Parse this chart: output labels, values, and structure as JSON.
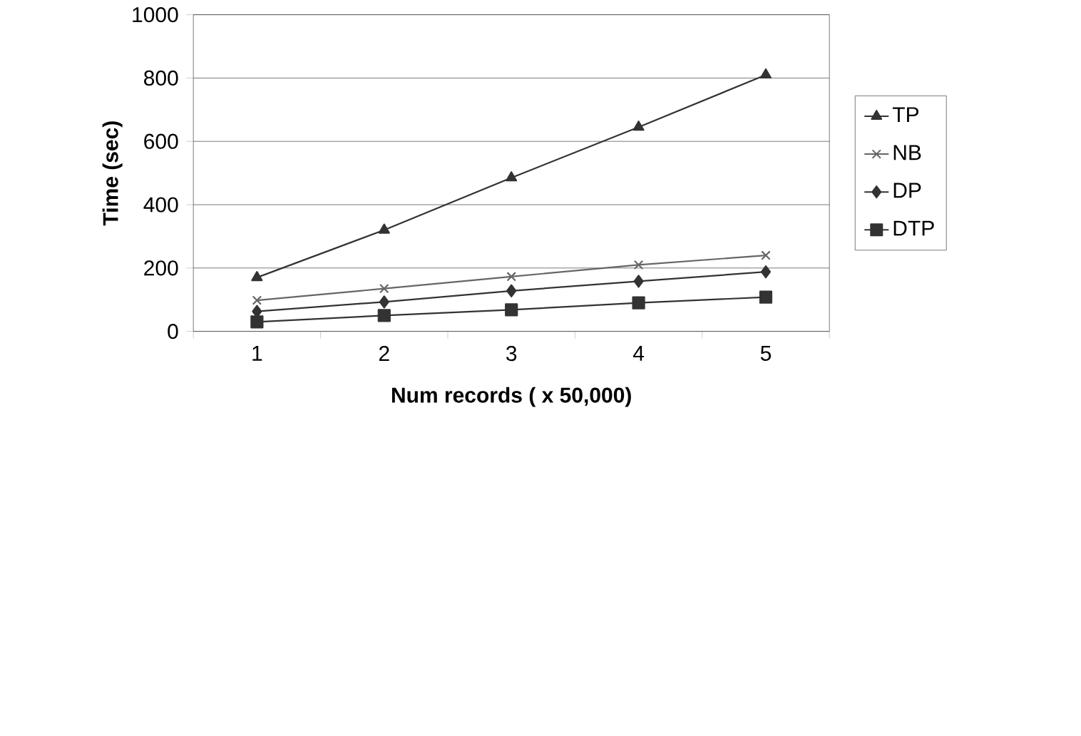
{
  "chart_data": {
    "type": "line",
    "xlabel": "Num records ( x 50,000)",
    "ylabel": "Time (sec)",
    "categories": [
      "1",
      "2",
      "3",
      "4",
      "5"
    ],
    "series": [
      {
        "name": "TP",
        "color": "#333333",
        "marker": "triangle",
        "values": [
          170,
          320,
          485,
          645,
          810
        ]
      },
      {
        "name": "NB",
        "color": "#666666",
        "marker": "cross",
        "values": [
          98,
          135,
          173,
          210,
          240
        ]
      },
      {
        "name": "DP",
        "color": "#333333",
        "marker": "diamond",
        "values": [
          63,
          93,
          128,
          158,
          188
        ]
      },
      {
        "name": "DTP",
        "color": "#333333",
        "marker": "square",
        "values": [
          30,
          50,
          68,
          90,
          108
        ]
      }
    ],
    "ylim": [
      0,
      1000
    ],
    "yticks": [
      0,
      200,
      400,
      600,
      800,
      1000
    ],
    "grid": "y",
    "legend": "right",
    "line_style": "solid"
  }
}
